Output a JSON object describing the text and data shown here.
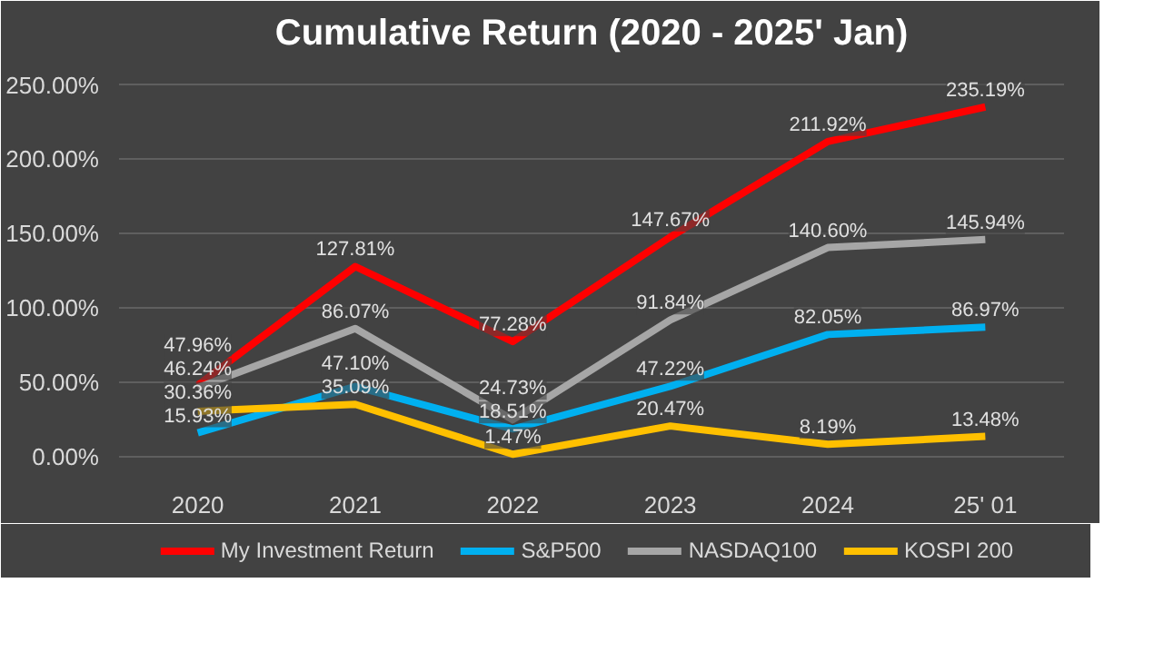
{
  "chart_data": {
    "type": "line",
    "title": "Cumulative Return (2020 - 2025' Jan)",
    "categories": [
      "2020",
      "2021",
      "2022",
      "2023",
      "2024",
      "25' 01"
    ],
    "series": [
      {
        "name": "My Investment Return",
        "color": "#ff0000",
        "values": [
          47.96,
          127.81,
          77.28,
          147.67,
          211.92,
          235.19
        ],
        "value_labels": [
          "47.96%",
          "127.81%",
          "77.28%",
          "147.67%",
          "211.92%",
          "235.19%"
        ]
      },
      {
        "name": "S&P500",
        "color": "#00b0f0",
        "values": [
          15.93,
          47.1,
          18.51,
          47.22,
          82.05,
          86.97
        ],
        "value_labels": [
          "15.93%",
          "47.10%",
          "18.51%",
          "47.22%",
          "82.05%",
          "86.97%"
        ]
      },
      {
        "name": "NASDAQ100",
        "color": "#a6a6a6",
        "values": [
          46.24,
          86.07,
          24.73,
          91.84,
          140.6,
          145.94
        ],
        "value_labels": [
          "46.24%",
          "86.07%",
          "24.73%",
          "91.84%",
          "140.60%",
          "145.94%"
        ]
      },
      {
        "name": "KOSPI 200",
        "color": "#ffc000",
        "values": [
          30.36,
          35.09,
          1.47,
          20.47,
          8.19,
          13.48
        ],
        "value_labels": [
          "30.36%",
          "35.09%",
          "1.47%",
          "20.47%",
          "8.19%",
          "13.48%"
        ]
      }
    ],
    "ylim": [
      -10,
      265
    ],
    "yticks": [
      {
        "value": 0,
        "label": "0.00%"
      },
      {
        "value": 50,
        "label": "50.00%"
      },
      {
        "value": 100,
        "label": "100.00%"
      },
      {
        "value": 150,
        "label": "150.00%"
      },
      {
        "value": 200,
        "label": "200.00%"
      },
      {
        "value": 250,
        "label": "250.00%"
      }
    ],
    "grid": "y",
    "legend": "bottom",
    "marker": "none",
    "line_style": "solid"
  }
}
